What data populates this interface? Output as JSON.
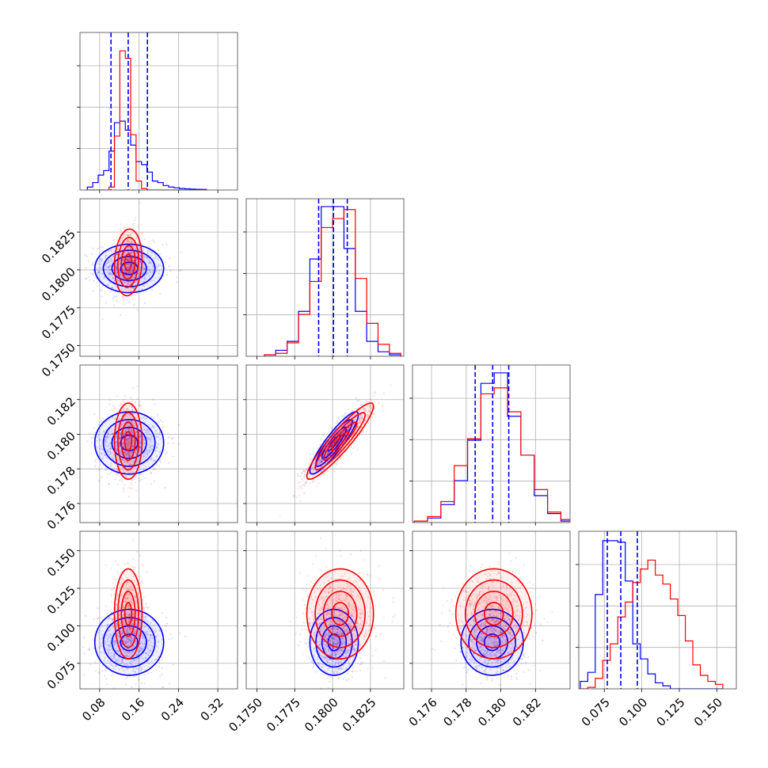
{
  "chart_data": {
    "type": "corner",
    "grid": true,
    "colors": {
      "set_a": "#0000ff",
      "set_b": "#ff0000",
      "frame": "#444444",
      "grid": "#b0b0b0"
    },
    "parameters": [
      {
        "range": [
          0.04,
          0.36
        ],
        "ticks": [
          "0.08",
          "0.16",
          "0.24",
          "0.32"
        ],
        "tick_values": [
          0.08,
          0.16,
          0.24,
          0.32
        ]
      },
      {
        "range": [
          0.1743,
          0.1847
        ],
        "ticks": [
          "0.1750",
          "0.1775",
          "0.1800",
          "0.1825"
        ],
        "tick_values": [
          0.175,
          0.1775,
          0.18,
          0.1825
        ]
      },
      {
        "range": [
          0.1749,
          0.184
        ],
        "ticks": [
          "0.176",
          "0.178",
          "0.180",
          "0.182"
        ],
        "tick_values": [
          0.176,
          0.178,
          0.18,
          0.182
        ]
      },
      {
        "range": [
          0.058,
          0.163
        ],
        "ticks": [
          "0.075",
          "0.100",
          "0.125",
          "0.150"
        ],
        "tick_values": [
          0.075,
          0.1,
          0.125,
          0.15
        ]
      }
    ],
    "series": [
      {
        "color": "#0000ff",
        "mean": [
          0.14,
          0.1801,
          0.1795,
          0.089
        ],
        "std": [
          0.035,
          0.0008,
          0.0009,
          0.011
        ],
        "quantiles": [
          [
            0.103,
            0.138,
            0.177
          ],
          [
            0.17908,
            0.18006,
            0.18097
          ],
          [
            0.17852,
            0.17953,
            0.18046
          ],
          [
            0.077,
            0.086,
            0.097
          ]
        ]
      },
      {
        "color": "#ff0000",
        "mean": [
          0.138,
          0.1805,
          0.1796,
          0.108
        ],
        "std": [
          0.014,
          0.0011,
          0.0011,
          0.015
        ]
      }
    ],
    "correlations": [
      {
        "pair": [
          0,
          1
        ],
        "a": 0.0,
        "b": 0.1
      },
      {
        "pair": [
          0,
          2
        ],
        "a": 0.0,
        "b": 0.0
      },
      {
        "pair": [
          1,
          2
        ],
        "a": 0.9,
        "b": 0.92
      },
      {
        "pair": [
          0,
          3
        ],
        "a": 0.0,
        "b": 0.0
      },
      {
        "pair": [
          1,
          3
        ],
        "a": 0.0,
        "b": 0.0
      },
      {
        "pair": [
          2,
          3
        ],
        "a": 0.0,
        "b": 0.0
      }
    ],
    "histograms": [
      {
        "bins": [
          0.055,
          0.066,
          0.077,
          0.088,
          0.099,
          0.11,
          0.121,
          0.132,
          0.143,
          0.154,
          0.165,
          0.176,
          0.187,
          0.198,
          0.209,
          0.22,
          0.231,
          0.242,
          0.253,
          0.264,
          0.275,
          0.286,
          0.297
        ],
        "a": [
          0.02,
          0.05,
          0.1,
          0.13,
          0.26,
          0.45,
          0.46,
          0.4,
          0.3,
          0.19,
          0.17,
          0.12,
          0.06,
          0.05,
          0.03,
          0.02,
          0.015,
          0.01,
          0.008,
          0.006,
          0.005,
          0.004
        ],
        "b": [
          0.0,
          0.0,
          0.0,
          0.0,
          0.02,
          0.36,
          0.93,
          0.88,
          0.37,
          0.06,
          0.01,
          0.0,
          0.0,
          0.0,
          0.0,
          0.0,
          0.0,
          0.0,
          0.0,
          0.0,
          0.0,
          0.0
        ]
      },
      {
        "bins": [
          0.1755,
          0.17625,
          0.177,
          0.17775,
          0.1785,
          0.17925,
          0.18,
          0.18075,
          0.1815,
          0.18225,
          0.183,
          0.18375,
          0.1845
        ],
        "a": [
          0.01,
          0.04,
          0.1,
          0.3,
          0.65,
          1.0,
          1.0,
          0.72,
          0.3,
          0.1,
          0.03,
          0.01
        ],
        "b": [
          0.01,
          0.02,
          0.09,
          0.28,
          0.5,
          0.86,
          0.92,
          0.98,
          0.52,
          0.22,
          0.08,
          0.02
        ]
      },
      {
        "bins": [
          0.175,
          0.17577,
          0.17654,
          0.17731,
          0.17808,
          0.17885,
          0.17962,
          0.18039,
          0.18116,
          0.18193,
          0.1827,
          0.18347,
          0.18424
        ],
        "a": [
          0.01,
          0.03,
          0.12,
          0.28,
          0.55,
          0.93,
          1.0,
          0.71,
          0.45,
          0.18,
          0.06,
          0.01
        ],
        "b": [
          0.01,
          0.04,
          0.14,
          0.38,
          0.56,
          0.86,
          0.9,
          0.74,
          0.45,
          0.22,
          0.07,
          0.02
        ]
      },
      {
        "bins": [
          0.059,
          0.064,
          0.069,
          0.074,
          0.079,
          0.084,
          0.089,
          0.094,
          0.099,
          0.104,
          0.109,
          0.114,
          0.119,
          0.124,
          0.129,
          0.134,
          0.139,
          0.144,
          0.149,
          0.154
        ],
        "a": [
          0.05,
          0.11,
          0.63,
          0.99,
          0.99,
          0.98,
          0.72,
          0.3,
          0.2,
          0.1,
          0.04,
          0.02,
          0.0,
          0.0,
          0.0,
          0.0,
          0.0,
          0.0,
          0.0
        ],
        "b": [
          0.0,
          0.01,
          0.07,
          0.19,
          0.3,
          0.48,
          0.58,
          0.71,
          0.8,
          0.86,
          0.76,
          0.7,
          0.6,
          0.49,
          0.32,
          0.16,
          0.09,
          0.05,
          0.03
        ]
      }
    ],
    "hist_ticks_count": 3
  }
}
